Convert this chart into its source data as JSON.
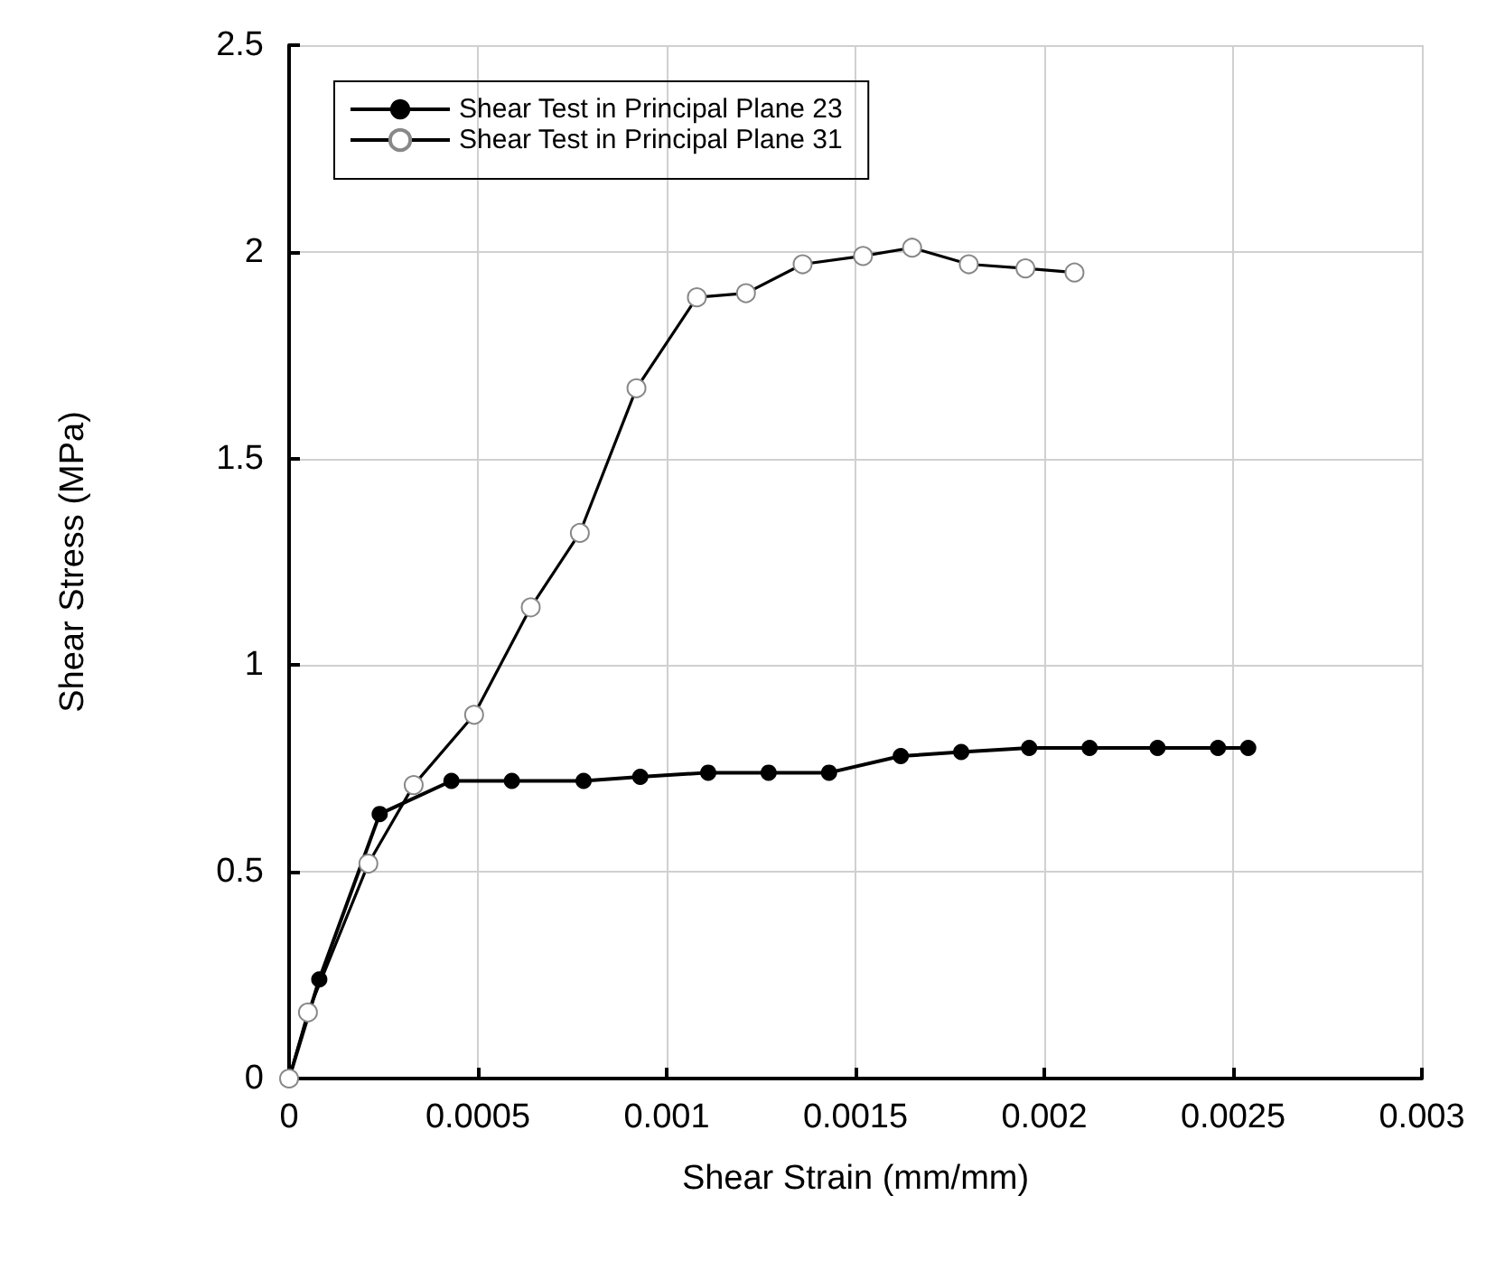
{
  "chart_data": {
    "type": "line",
    "xlabel": "Shear Strain (mm/mm)",
    "ylabel": "Shear Stress (MPa)",
    "xlim": [
      0,
      0.003
    ],
    "xticks": [
      0,
      0.0005,
      0.001,
      0.0015,
      0.002,
      0.0025,
      0.003
    ],
    "ylim": [
      0,
      2.5
    ],
    "yticks": [
      0,
      0.5,
      1,
      1.5,
      2,
      2.5
    ],
    "grid": true,
    "legend": "top left",
    "marker": "circle",
    "line_style": "solid",
    "series": [
      {
        "name": "Shear Test in Principal Plane 23",
        "color": "#000000",
        "x": [
          0,
          8e-05,
          0.00024,
          0.00043,
          0.00059,
          0.00078,
          0.00093,
          0.00111,
          0.00127,
          0.00143,
          0.00162,
          0.00178,
          0.00196,
          0.00212,
          0.0023,
          0.00246,
          0.00254
        ],
        "values": [
          0,
          0.24,
          0.64,
          0.72,
          0.72,
          0.72,
          0.73,
          0.74,
          0.74,
          0.74,
          0.78,
          0.79,
          0.8,
          0.8,
          0.8,
          0.8,
          0.8
        ]
      },
      {
        "name": "Shear Test in Principal Plane 31",
        "color": "#000000",
        "x": [
          0,
          5e-05,
          0.00021,
          0.00033,
          0.00049,
          0.00064,
          0.00077,
          0.00092,
          0.00108,
          0.00121,
          0.00136,
          0.00152,
          0.00165,
          0.0018,
          0.00195,
          0.00208
        ],
        "values": [
          0,
          0.16,
          0.52,
          0.71,
          0.88,
          1.14,
          1.32,
          1.67,
          1.89,
          1.9,
          1.97,
          1.99,
          2.01,
          1.97,
          1.96,
          1.95
        ]
      }
    ]
  }
}
